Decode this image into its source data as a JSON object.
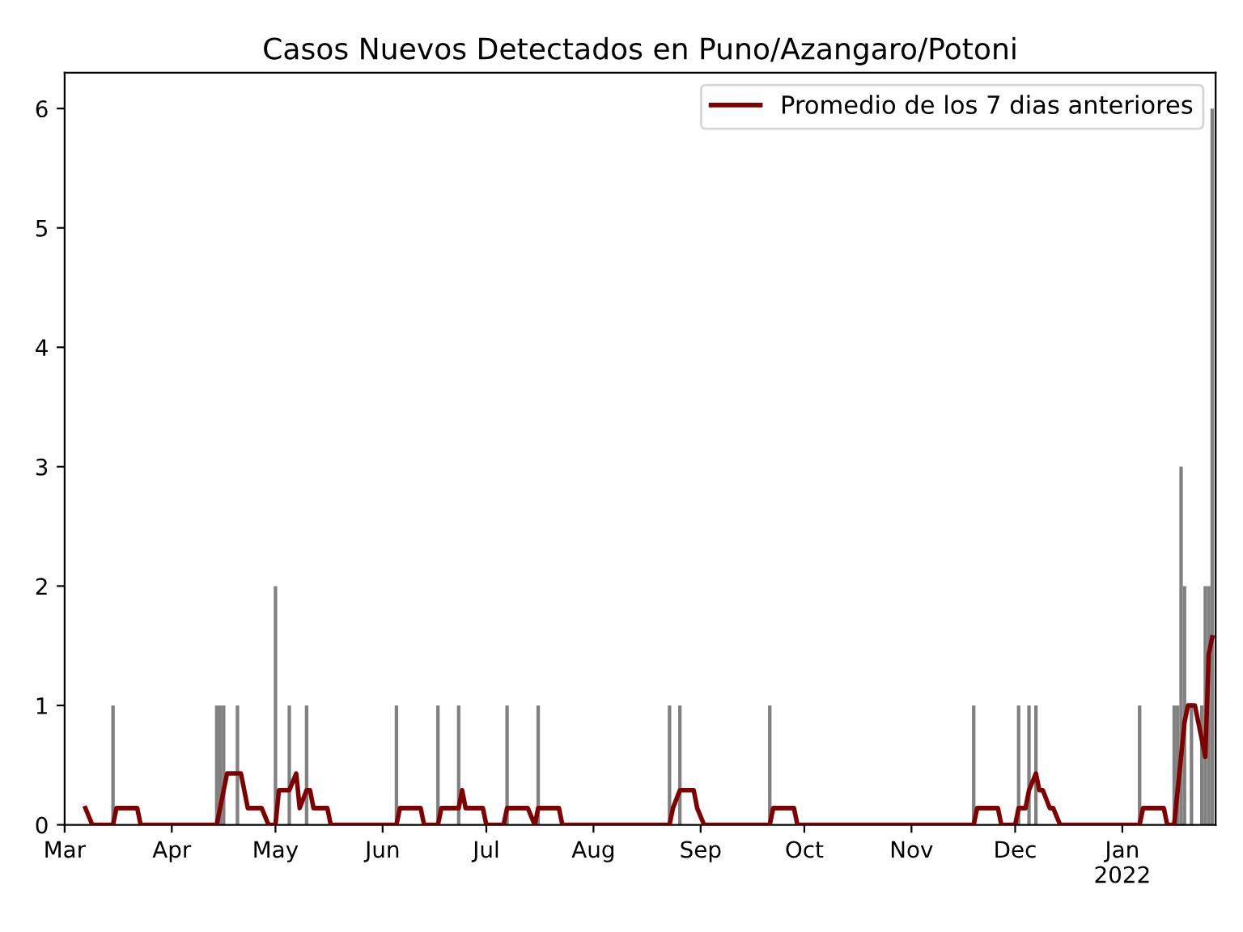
{
  "chart_data": {
    "type": "bar",
    "title": "Casos Nuevos Detectados en Puno/Azangaro/Potoni",
    "xlim": [
      "2021-03-01",
      "2022-01-28"
    ],
    "ylim": [
      0,
      6.3
    ],
    "yticks": [
      0,
      1,
      2,
      3,
      4,
      5,
      6
    ],
    "xticks": [
      {
        "value": "2021-03-01",
        "label": "Mar"
      },
      {
        "value": "2021-04-01",
        "label": "Apr"
      },
      {
        "value": "2021-05-01",
        "label": "May"
      },
      {
        "value": "2021-06-01",
        "label": "Jun"
      },
      {
        "value": "2021-07-01",
        "label": "Jul"
      },
      {
        "value": "2021-08-01",
        "label": "Aug"
      },
      {
        "value": "2021-09-01",
        "label": "Sep"
      },
      {
        "value": "2021-10-01",
        "label": "Oct"
      },
      {
        "value": "2021-11-01",
        "label": "Nov"
      },
      {
        "value": "2021-12-01",
        "label": "Dec"
      },
      {
        "value": "2022-01-01",
        "label": "Jan\n2022"
      }
    ],
    "legend": "top right",
    "grid": false,
    "series": [
      {
        "color": "#808080",
        "x": [
          "2021-03-15",
          "2021-04-14",
          "2021-04-15",
          "2021-04-16",
          "2021-04-20",
          "2021-05-01",
          "2021-05-05",
          "2021-05-10",
          "2021-06-05",
          "2021-06-17",
          "2021-06-23",
          "2021-07-07",
          "2021-07-16",
          "2021-08-23",
          "2021-08-26",
          "2021-09-21",
          "2021-11-19",
          "2021-12-02",
          "2021-12-05",
          "2021-12-07",
          "2022-01-06",
          "2022-01-16",
          "2022-01-17",
          "2022-01-18",
          "2022-01-19",
          "2022-01-21",
          "2022-01-24",
          "2022-01-25",
          "2022-01-26",
          "2022-01-27"
        ],
        "values": [
          1,
          1,
          1,
          1,
          1,
          2,
          1,
          1,
          1,
          1,
          1,
          1,
          1,
          1,
          1,
          1,
          1,
          1,
          1,
          1,
          1,
          1,
          1,
          3,
          2,
          1,
          1,
          2,
          2,
          6
        ]
      },
      {
        "type": "line",
        "name": "Promedio de los 7 dias anteriores",
        "color": "#800000",
        "x": [
          "2021-03-07",
          "2021-03-09",
          "2021-03-15",
          "2021-03-16",
          "2021-03-22",
          "2021-03-23",
          "2021-04-14",
          "2021-04-17",
          "2021-04-21",
          "2021-04-23",
          "2021-04-27",
          "2021-04-29",
          "2021-05-01",
          "2021-05-02",
          "2021-05-05",
          "2021-05-07",
          "2021-05-08",
          "2021-05-10",
          "2021-05-11",
          "2021-05-12",
          "2021-05-16",
          "2021-05-17",
          "2021-06-05",
          "2021-06-06",
          "2021-06-12",
          "2021-06-13",
          "2021-06-17",
          "2021-06-18",
          "2021-06-23",
          "2021-06-24",
          "2021-06-25",
          "2021-06-30",
          "2021-07-01",
          "2021-07-06",
          "2021-07-07",
          "2021-07-13",
          "2021-07-15",
          "2021-07-16",
          "2021-07-22",
          "2021-07-23",
          "2021-08-23",
          "2021-08-24",
          "2021-08-26",
          "2021-08-30",
          "2021-08-31",
          "2021-09-02",
          "2021-09-21",
          "2021-09-22",
          "2021-09-28",
          "2021-09-29",
          "2021-11-19",
          "2021-11-20",
          "2021-11-26",
          "2021-11-27",
          "2021-12-01",
          "2021-12-02",
          "2021-12-04",
          "2021-12-05",
          "2021-12-07",
          "2021-12-08",
          "2021-12-09",
          "2021-12-11",
          "2021-12-12",
          "2021-12-14",
          "2022-01-06",
          "2022-01-07",
          "2022-01-13",
          "2022-01-14",
          "2022-01-16",
          "2022-01-19",
          "2022-01-20",
          "2022-01-22",
          "2022-01-25",
          "2022-01-26",
          "2022-01-27"
        ],
        "values": [
          0.14,
          0,
          0,
          0.14,
          0.14,
          0,
          0,
          0.43,
          0.43,
          0.14,
          0.14,
          0,
          0,
          0.29,
          0.29,
          0.43,
          0.14,
          0.29,
          0.29,
          0.14,
          0.14,
          0,
          0,
          0.14,
          0.14,
          0,
          0,
          0.14,
          0.14,
          0.29,
          0.14,
          0.14,
          0,
          0,
          0.14,
          0.14,
          0,
          0.14,
          0.14,
          0,
          0,
          0.14,
          0.29,
          0.29,
          0.14,
          0,
          0,
          0.14,
          0.14,
          0,
          0,
          0.14,
          0.14,
          0,
          0,
          0.14,
          0.14,
          0.29,
          0.43,
          0.29,
          0.29,
          0.14,
          0.14,
          0,
          0,
          0.14,
          0.14,
          0,
          0,
          0.86,
          1,
          1,
          0.57,
          1.43,
          1.57
        ]
      }
    ]
  }
}
